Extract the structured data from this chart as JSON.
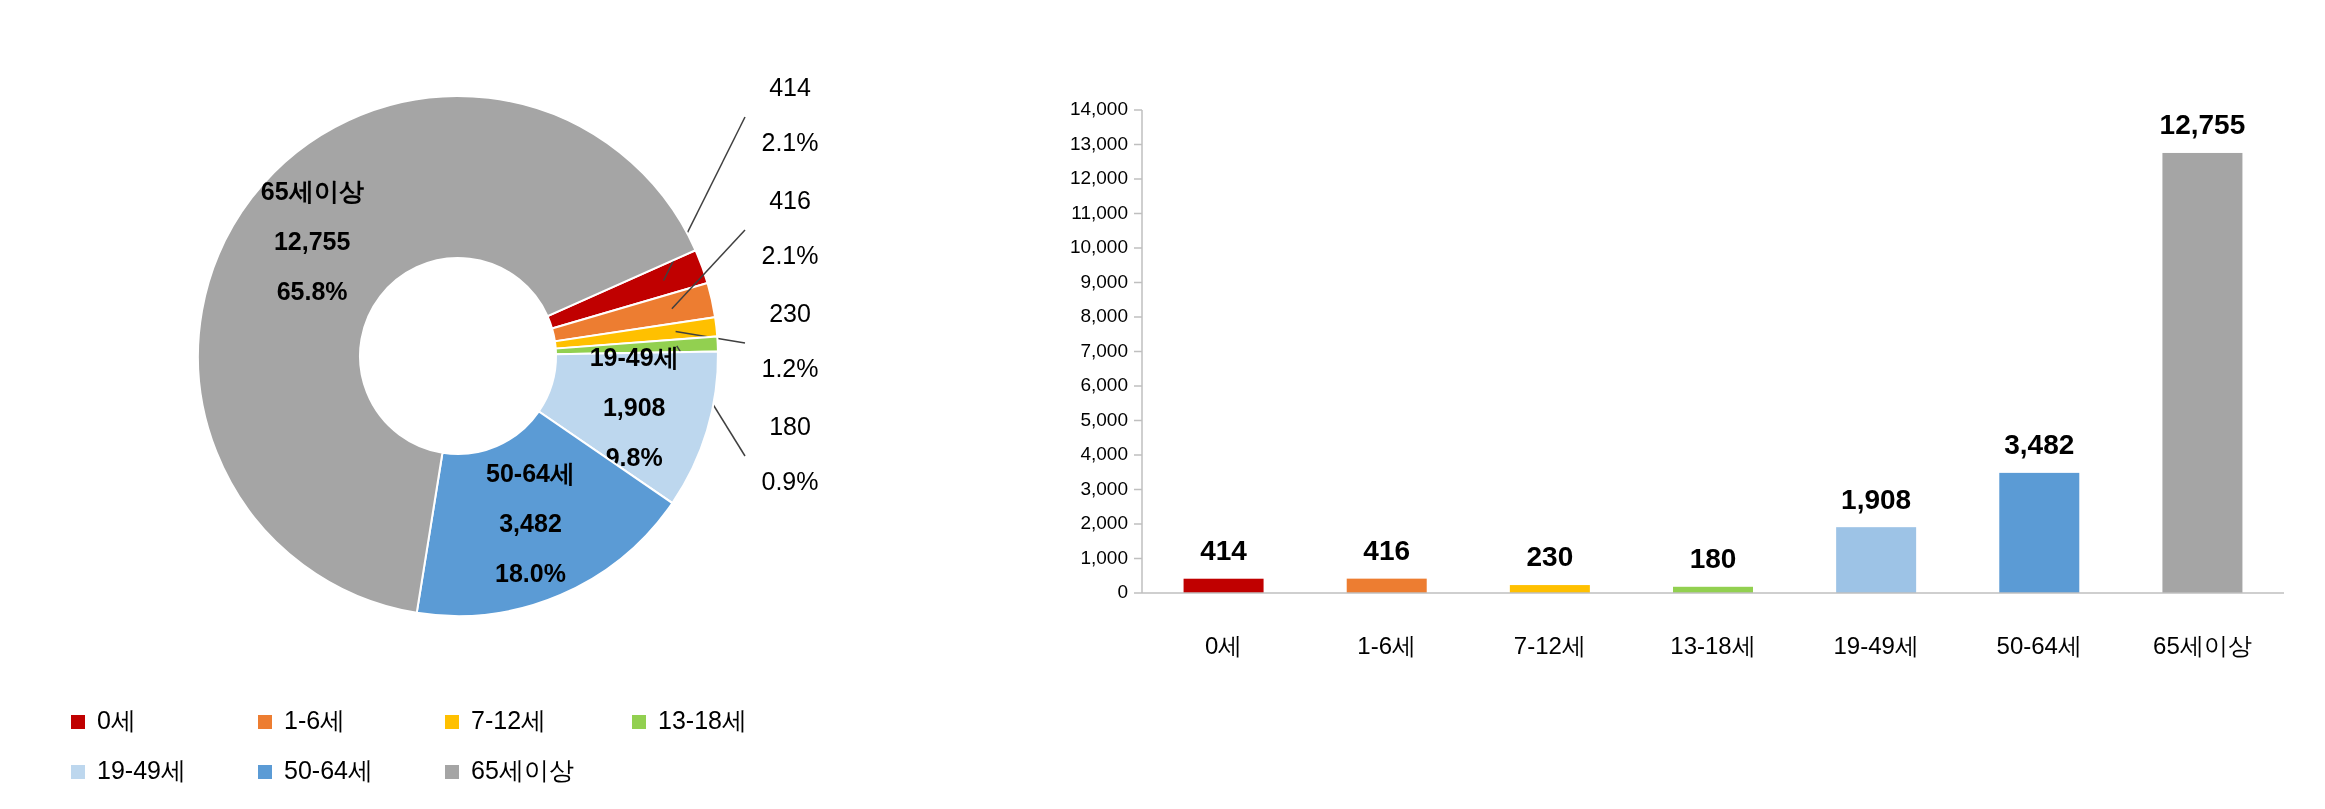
{
  "chart_data": [
    {
      "type": "donut",
      "categories": [
        "0세",
        "1-6세",
        "7-12세",
        "13-18세",
        "19-49세",
        "50-64세",
        "65세이상"
      ],
      "values": [
        414,
        416,
        230,
        180,
        1908,
        3482,
        12755
      ],
      "colors": [
        "#c00000",
        "#ed7d31",
        "#ffc000",
        "#92d050",
        "#bdd7ee",
        "#5b9bd5",
        "#a5a5a5"
      ],
      "value_labels": [
        "414\n2.1%",
        "416\n2.1%",
        "230\n1.2%",
        "180\n0.9%",
        "19-49세\n1,908\n9.8%",
        "50-64세\n3,482\n18.0%",
        "65세이상\n12,755\n65.8%"
      ],
      "legend": "bottom"
    },
    {
      "type": "bar",
      "categories": [
        "0세",
        "1-6세",
        "7-12세",
        "13-18세",
        "19-49세",
        "50-64세",
        "65세이상"
      ],
      "values": [
        414,
        416,
        230,
        180,
        1908,
        3482,
        12755
      ],
      "colors": [
        "#c00000",
        "#ed7d31",
        "#ffc000",
        "#92d050",
        "#9dc3e6",
        "#5b9bd5",
        "#a5a5a5"
      ],
      "value_labels": [
        "414",
        "416",
        "230",
        "180",
        "1,908",
        "3,482",
        "12,755"
      ],
      "ylim": [
        0,
        14000
      ],
      "yticks": [
        0,
        {
          "value": 1000,
          "label": "1,000"
        },
        {
          "value": 2000,
          "label": "2,000"
        },
        {
          "value": 3000,
          "label": "3,000"
        },
        {
          "value": 4000,
          "label": "4,000"
        },
        {
          "value": 5000,
          "label": "5,000"
        },
        {
          "value": 6000,
          "label": "6,000"
        },
        {
          "value": 7000,
          "label": "7,000"
        },
        {
          "value": 8000,
          "label": "8,000"
        },
        {
          "value": 9000,
          "label": "9,000"
        },
        {
          "value": 10000,
          "label": "10,000"
        },
        {
          "value": 11000,
          "label": "11,000"
        },
        {
          "value": 12000,
          "label": "12,000"
        },
        {
          "value": 13000,
          "label": "13,000"
        },
        {
          "value": 14000,
          "label": "14,000"
        }
      ],
      "grid": false
    }
  ]
}
